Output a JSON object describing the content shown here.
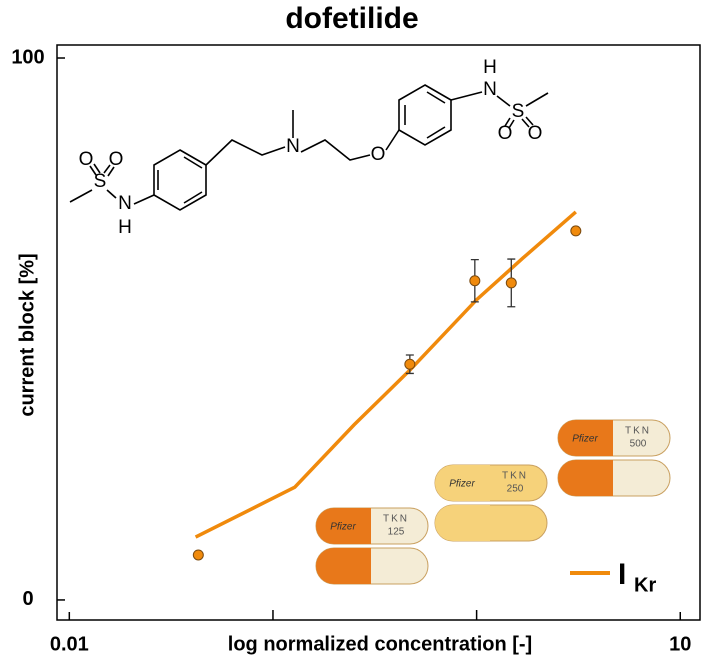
{
  "chart_data": {
    "type": "scatter",
    "title": "dofetilide",
    "x_label": "log normalized concentration [-]",
    "y_label": "current block [%]",
    "log_x": true,
    "xlim": [
      0.0087,
      12.5
    ],
    "ylim": [
      -3.7,
      102.4
    ],
    "xticks": [
      0.01,
      10
    ],
    "xticks_minor": [
      0.1,
      1
    ],
    "yticks": [
      0,
      100
    ],
    "legend": "lower right",
    "series": [
      {
        "name": "I",
        "name_subscript": "Kr",
        "color": "#f08a0c",
        "x": [
          0.043,
          0.47,
          0.98,
          1.48,
          3.07
        ],
        "values": [
          8.3,
          43.5,
          58.9,
          58.5,
          68.1
        ],
        "errors": [
          null,
          1.7,
          3.9,
          4.4,
          null
        ],
        "fit_x": [
          0.0417,
          0.128,
          0.25,
          0.47,
          1,
          1.69,
          3.07
        ],
        "fit_values": [
          11.6,
          20.8,
          32.3,
          42.4,
          55.4,
          63.1,
          71.6
        ]
      }
    ],
    "structure_labels": [
      "O",
      "O",
      "S",
      "N",
      "H",
      "N",
      "O",
      "H",
      "N",
      "S",
      "O",
      "O"
    ],
    "capsules": [
      {
        "brand": "Pfizer",
        "code": "TKN",
        "dose": "125"
      },
      {
        "brand": "Pfizer",
        "code": "TKN",
        "dose": "250"
      },
      {
        "brand": "Pfizer",
        "code": "TKN",
        "dose": "500"
      }
    ]
  }
}
